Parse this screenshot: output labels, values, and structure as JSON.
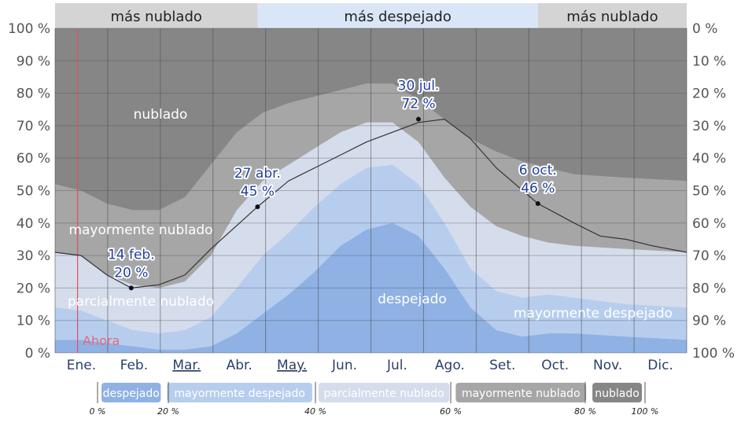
{
  "chart_data": {
    "type": "area",
    "categories": [
      "Ene.",
      "Feb.",
      "Mar.",
      "Abr.",
      "May.",
      "Jun.",
      "Jul.",
      "Ago.",
      "Set.",
      "Oct.",
      "Nov.",
      "Dic."
    ],
    "left_axis_ticks": [
      "0 %",
      "10 %",
      "20 %",
      "30 %",
      "40 %",
      "50 %",
      "60 %",
      "70 %",
      "80 %",
      "90 %",
      "100 %"
    ],
    "right_axis_ticks": [
      "100 %",
      "90 %",
      "80 %",
      "70 %",
      "60 %",
      "50 %",
      "40 %",
      "30 %",
      "20 %",
      "10 %",
      "0 %"
    ],
    "ylim": [
      0,
      100
    ],
    "seasons": [
      {
        "label": "más nublado",
        "from_day": 0,
        "to_day": 117
      },
      {
        "label": "más despejado",
        "from_day": 117,
        "to_day": 279
      },
      {
        "label": "más nublado",
        "from_day": 279,
        "to_day": 365
      }
    ],
    "series": [
      {
        "name": "despejado",
        "color": "#8fb1e4",
        "cumulative": [
          4,
          4,
          3,
          2,
          1,
          1,
          2,
          6,
          12,
          18,
          25,
          33,
          38,
          40,
          36,
          26,
          14,
          7,
          5,
          6,
          6,
          5,
          4
        ]
      },
      {
        "name": "mayormente despejado",
        "color": "#b7cdee",
        "cumulative": [
          14,
          13,
          10,
          7,
          6,
          7,
          11,
          20,
          30,
          37,
          45,
          52,
          57,
          58,
          52,
          40,
          26,
          19,
          17,
          18,
          17,
          15,
          14
        ]
      },
      {
        "name": "parcialmente nublado",
        "color": "#d5dceb",
        "cumulative": [
          31,
          30,
          24,
          21,
          20,
          22,
          30,
          44,
          53,
          58,
          63,
          68,
          71,
          71,
          65,
          54,
          45,
          39,
          36,
          34,
          33,
          32,
          31
        ]
      },
      {
        "name": "mayormente nublado",
        "color": "#a6a6a6",
        "cumulative": [
          52,
          50,
          46,
          44,
          44,
          48,
          58,
          68,
          74,
          77,
          79,
          81,
          83,
          83,
          78,
          72,
          66,
          62,
          59,
          57,
          55,
          54,
          53
        ]
      },
      {
        "name": "nublado",
        "color": "#868686",
        "cumulative": [
          100,
          100,
          100,
          100,
          100,
          100,
          100,
          100,
          100,
          100,
          100,
          100,
          100,
          100,
          100,
          100,
          100,
          100,
          100,
          100,
          100,
          100,
          100
        ]
      }
    ],
    "sample_days": [
      0,
      15,
      30,
      45,
      60,
      75,
      90,
      105,
      120,
      135,
      150,
      165,
      180,
      195,
      210,
      225,
      240,
      255,
      270,
      285,
      300,
      330,
      365
    ],
    "clear_line_days": [
      0,
      15,
      30,
      44,
      60,
      75,
      90,
      117,
      135,
      150,
      165,
      180,
      195,
      210,
      225,
      240,
      255,
      279,
      300,
      315,
      330,
      345,
      365
    ],
    "clear_line": [
      31,
      30,
      24,
      20,
      21,
      24,
      32,
      45,
      53,
      57,
      61,
      65,
      68,
      71,
      72,
      66,
      57,
      46,
      40,
      36,
      35,
      33,
      31
    ],
    "annotations": [
      {
        "day": 44,
        "date": "14 feb.",
        "value": "20 %",
        "v": 20
      },
      {
        "day": 117,
        "date": "27 abr.",
        "value": "45 %",
        "v": 45
      },
      {
        "day": 210,
        "date": "30 jul.",
        "value": "72 %",
        "v": 72
      },
      {
        "day": 279,
        "date": "6 oct.",
        "value": "46 %",
        "v": 46
      }
    ],
    "band_labels": {
      "nublado": "nublado",
      "mayormente_nublado": "mayormente nublado",
      "parcialmente_nublado": "parcialmente nublado",
      "despejado": "despejado",
      "mayormente_despejado": "mayormente despejado"
    },
    "now_label": "Ahora",
    "now_day": 13
  },
  "legend": {
    "items": [
      {
        "label": "despejado",
        "color": "#8fb1e4"
      },
      {
        "label": "mayormente despejado",
        "color": "#b7cdee"
      },
      {
        "label": "parcialmente nublado",
        "color": "#d5dceb"
      },
      {
        "label": "mayormente nublado",
        "color": "#a6a6a6"
      },
      {
        "label": "nublado",
        "color": "#868686"
      }
    ],
    "percents": [
      "0 %",
      "20 %",
      "40 %",
      "60 %",
      "80 %",
      "100 %"
    ]
  },
  "colors": {
    "season_cloudy": "#d4d4d4",
    "season_clear": "#d9e6f7",
    "clear_line": "#333333",
    "now_line": "#e05060",
    "grid": "#4a4a4a"
  }
}
